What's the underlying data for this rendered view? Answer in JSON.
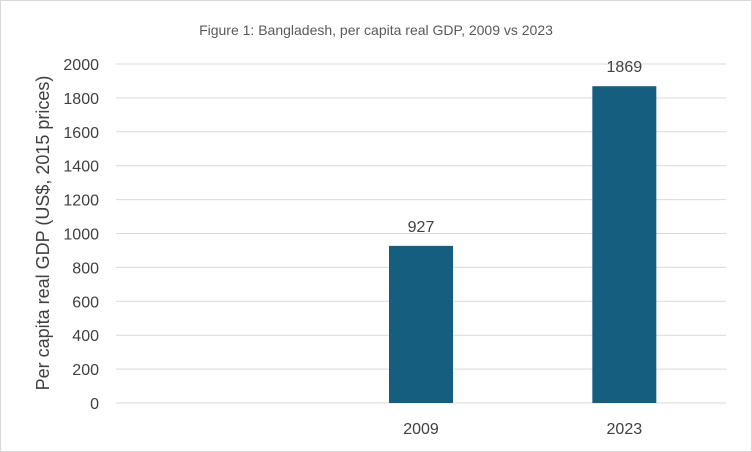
{
  "chart_data": {
    "type": "bar",
    "title": "Figure 1: Bangladesh, per capita real GDP, 2009 vs 2023",
    "xlabel": "",
    "ylabel": "Per capita real GDP (US$, 2015 prices)",
    "categories": [
      "",
      "2009",
      "2023"
    ],
    "values": [
      null,
      927,
      1869
    ],
    "data_labels": [
      "",
      "927",
      "1869"
    ],
    "ylim": [
      0,
      2000
    ],
    "yticks": [
      0,
      200,
      400,
      600,
      800,
      1000,
      1200,
      1400,
      1600,
      1800,
      2000
    ],
    "ytick_labels": [
      "0",
      "200",
      "400",
      "600",
      "800",
      "1000",
      "1200",
      "1400",
      "1600",
      "1800",
      "2000"
    ],
    "grid": true,
    "legend": "none",
    "bar_color": "#165e80",
    "grid_color": "#d9d9d9"
  }
}
